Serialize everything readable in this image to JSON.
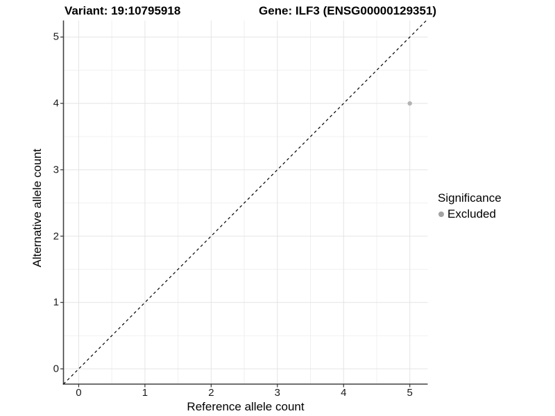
{
  "titles": {
    "variant": "Variant: 19:10795918",
    "gene": "Gene: ILF3 (ENSG00000129351)"
  },
  "chart_data": {
    "type": "scatter",
    "points": [
      {
        "x": 5,
        "y": 4,
        "significance": "Excluded"
      }
    ],
    "xlabel": "Reference allele count",
    "ylabel": "Alternative allele count",
    "xticks": [
      0,
      1,
      2,
      3,
      4,
      5
    ],
    "yticks": [
      0,
      1,
      2,
      3,
      4,
      5
    ],
    "xlim": [
      -0.23,
      5.27
    ],
    "ylim": [
      -0.23,
      5.25
    ],
    "grid": "major and minor, light grey on white",
    "reference_line": {
      "equation": "y = x",
      "style": "dashed"
    },
    "legend": {
      "title": "Significance",
      "position": "right",
      "entries": [
        {
          "label": "Excluded",
          "color": "#a3a3a3"
        }
      ]
    }
  },
  "colors": {
    "background": "#ffffff",
    "point": "#b3b3b3",
    "grid_major": "#e4e4e4",
    "grid_minor": "#f0f0f0",
    "axis": "#404040",
    "tick": "#333333",
    "identity_line": "#000000"
  }
}
